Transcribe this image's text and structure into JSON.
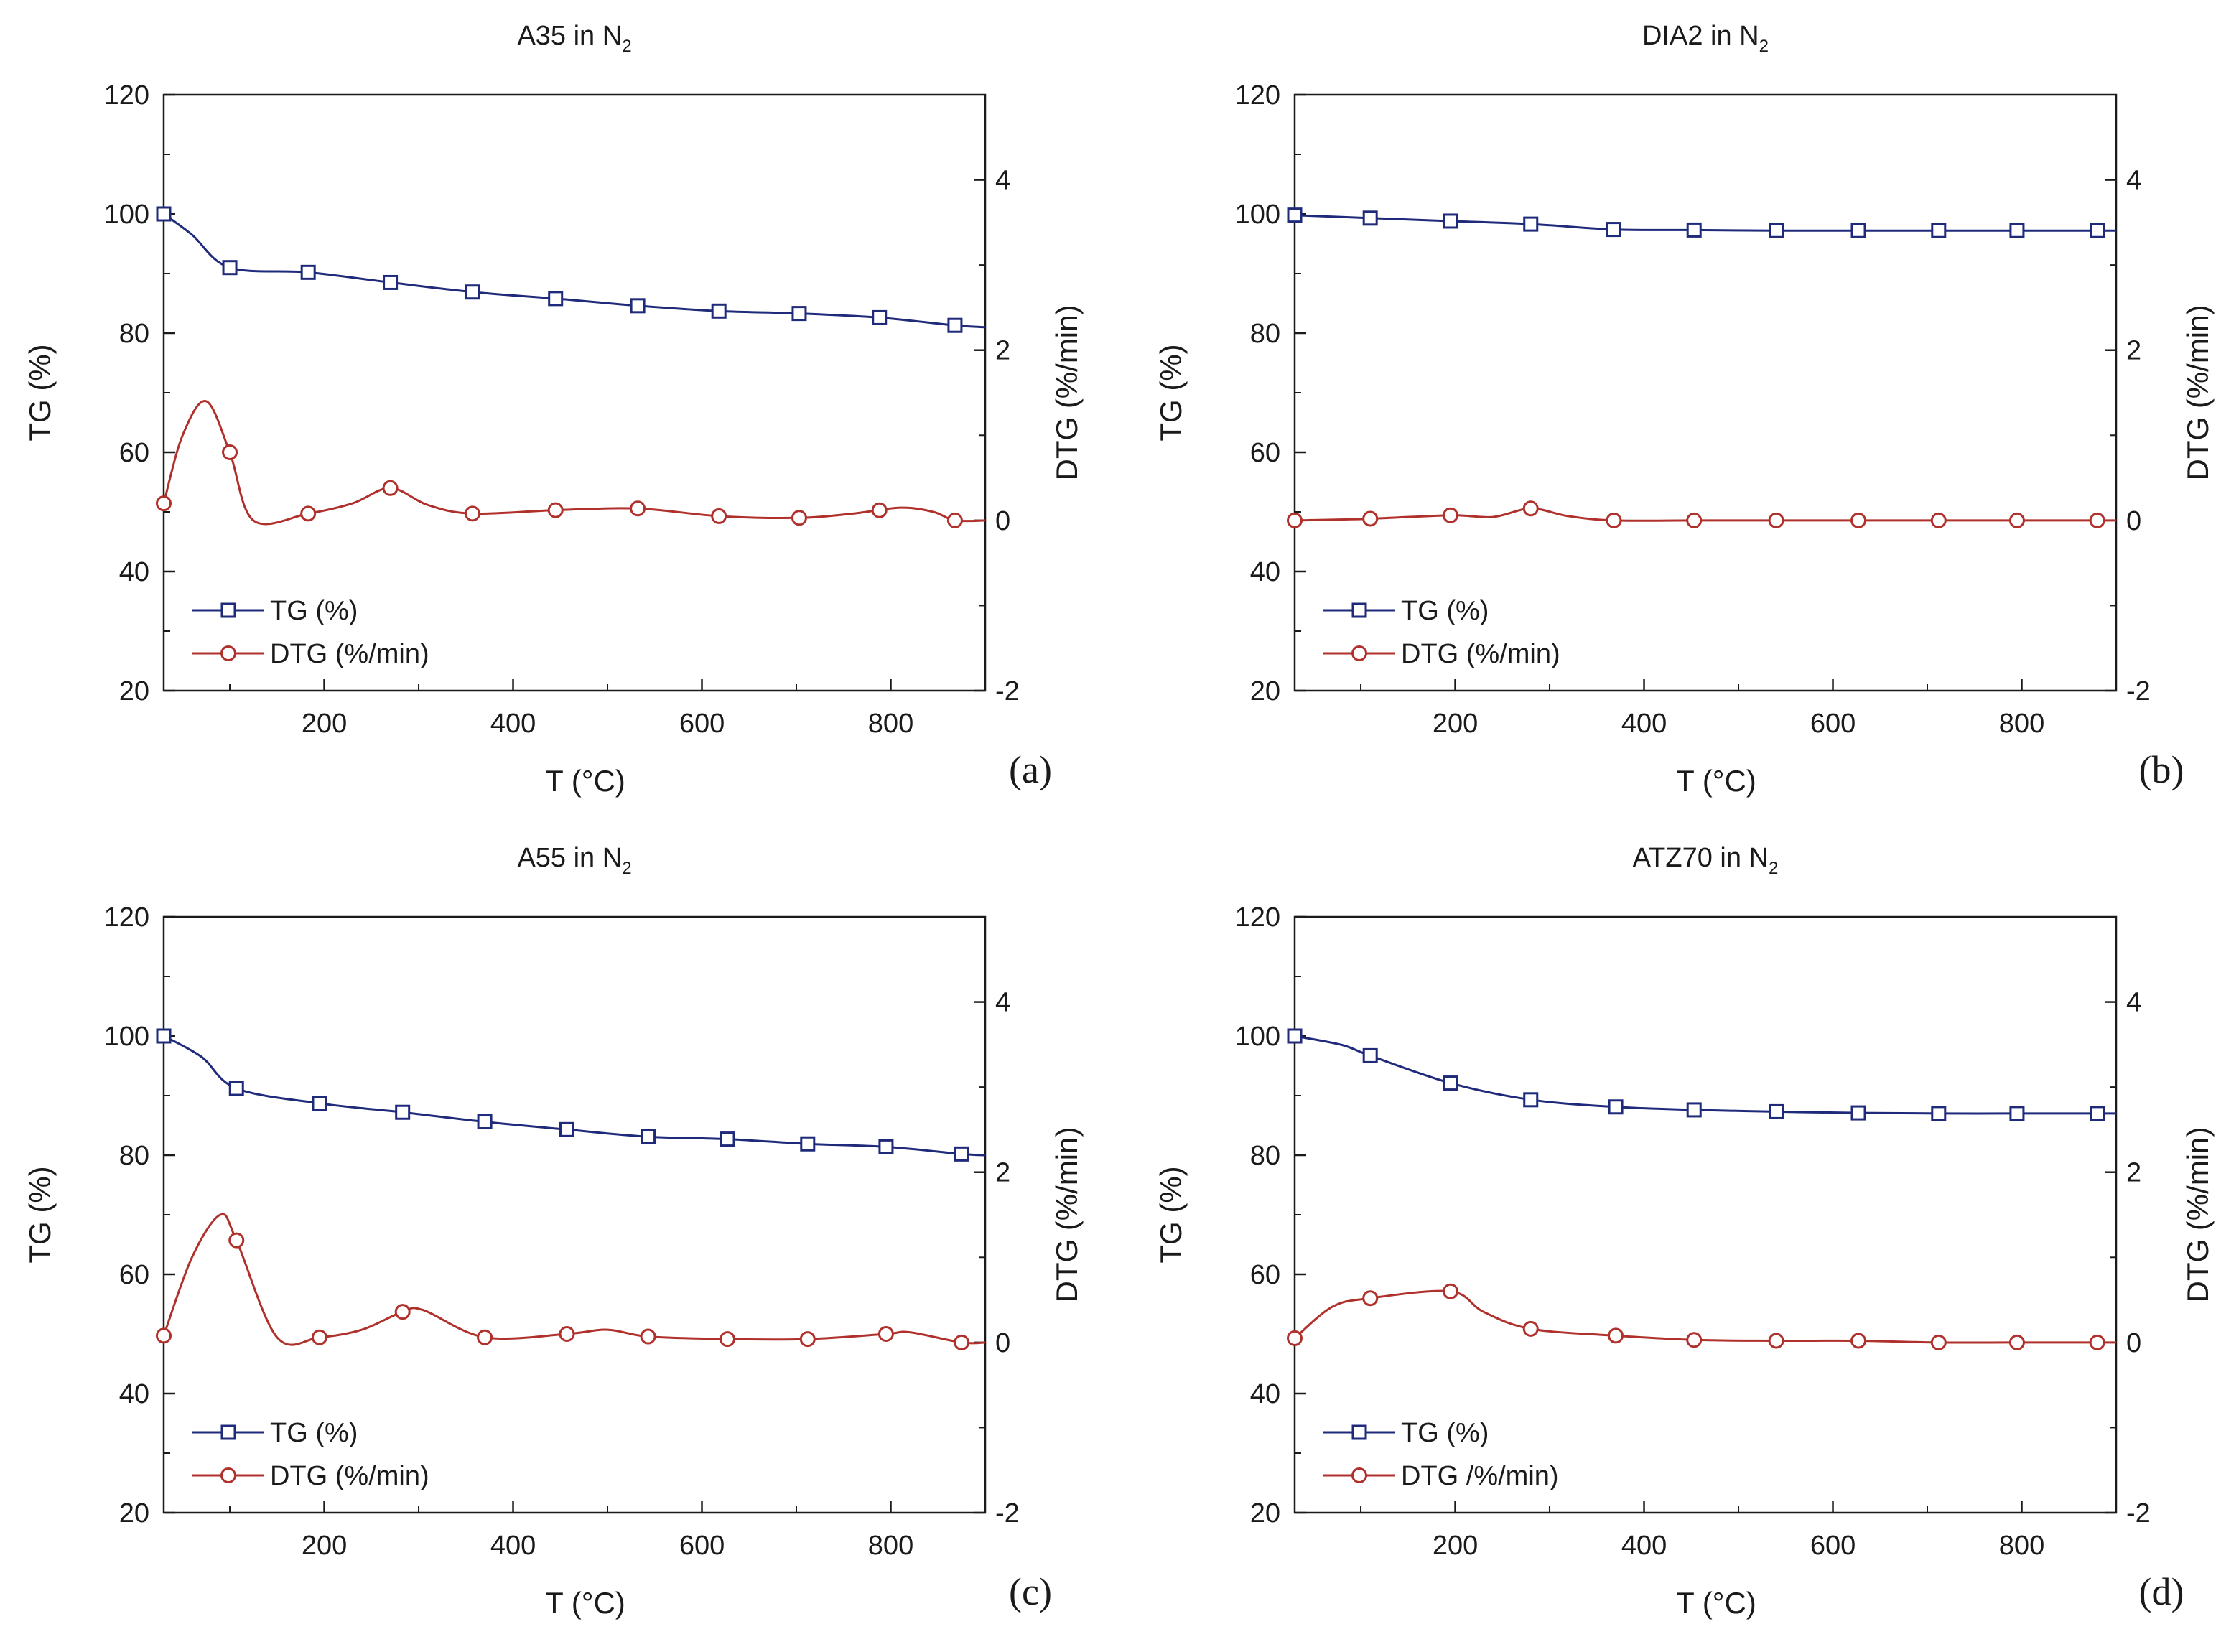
{
  "colors": {
    "tg": "#1f2a7a",
    "dtg": "#b0302c",
    "axis": "#1a1a1a",
    "background": "#ffffff"
  },
  "chart_data": [
    {
      "type": "line",
      "panel_label": "(a)",
      "title_main": "A35 in N",
      "title_sub": "2",
      "xlabel": "T (°C)",
      "ylabel_left": "TG (%)",
      "ylabel_right": "DTG (%/min)",
      "xlim": [
        30,
        900
      ],
      "ylim_left": [
        20,
        120
      ],
      "ylim_right": [
        -2,
        5
      ],
      "x_ticks": [
        "200",
        "400",
        "600",
        "800"
      ],
      "y_left_ticks": [
        "20",
        "40",
        "60",
        "80",
        "100",
        "120"
      ],
      "y_right_ticks": [
        "-2",
        "0",
        "2",
        "4"
      ],
      "legend": "bottom-left",
      "series": [
        {
          "name": "TG (%)",
          "axis": "left",
          "marker": "square",
          "x": [
            30,
            60,
            100,
            183,
            270,
            357,
            445,
            532,
            618,
            703,
            788,
            868,
            900
          ],
          "y": [
            100,
            96.5,
            91,
            90.2,
            88.5,
            86.9,
            85.8,
            84.6,
            83.7,
            83.3,
            82.6,
            81.3,
            81.0
          ],
          "markers_x": [
            30,
            100,
            183,
            270,
            357,
            445,
            532,
            618,
            703,
            788,
            868
          ]
        },
        {
          "name": "DTG (%/min)",
          "axis": "right",
          "marker": "circle",
          "x": [
            30,
            50,
            75,
            100,
            125,
            183,
            230,
            270,
            310,
            357,
            445,
            532,
            618,
            703,
            760,
            810,
            845,
            868,
            900
          ],
          "y": [
            0.2,
            1.0,
            1.4,
            0.8,
            0.0,
            0.08,
            0.2,
            0.38,
            0.18,
            0.08,
            0.12,
            0.14,
            0.05,
            0.03,
            0.08,
            0.15,
            0.1,
            0.0,
            0.0
          ],
          "markers_x": [
            30,
            100,
            183,
            270,
            357,
            445,
            532,
            618,
            703,
            788,
            868
          ]
        }
      ]
    },
    {
      "type": "line",
      "panel_label": "(b)",
      "title_main": "DIA2 in N",
      "title_sub": "2",
      "xlabel": "T (°C)",
      "ylabel_left": "TG (%)",
      "ylabel_right": "DTG (%/min)",
      "xlim": [
        30,
        900
      ],
      "ylim_left": [
        20,
        120
      ],
      "ylim_right": [
        -2,
        5
      ],
      "x_ticks": [
        "200",
        "400",
        "600",
        "800"
      ],
      "y_left_ticks": [
        "20",
        "40",
        "60",
        "80",
        "100",
        "120"
      ],
      "y_right_ticks": [
        "-2",
        "0",
        "2",
        "4"
      ],
      "legend": "bottom-left",
      "series": [
        {
          "name": "TG (%)",
          "axis": "left",
          "marker": "square",
          "x": [
            30,
            110,
            195,
            280,
            368,
            453,
            540,
            627,
            712,
            795,
            880,
            900
          ],
          "y": [
            99.8,
            99.3,
            98.8,
            98.3,
            97.4,
            97.3,
            97.2,
            97.2,
            97.2,
            97.2,
            97.2,
            97.2
          ],
          "markers_x": [
            30,
            110,
            195,
            280,
            368,
            453,
            540,
            627,
            712,
            795,
            880
          ]
        },
        {
          "name": "DTG (%/min)",
          "axis": "right",
          "marker": "circle",
          "x": [
            30,
            110,
            195,
            240,
            280,
            320,
            368,
            453,
            540,
            627,
            712,
            795,
            880,
            900
          ],
          "y": [
            0.0,
            0.02,
            0.06,
            0.04,
            0.14,
            0.05,
            0.0,
            0.0,
            0.0,
            0.0,
            0.0,
            0.0,
            0.0,
            0.0
          ],
          "markers_x": [
            30,
            110,
            195,
            280,
            368,
            453,
            540,
            627,
            712,
            795,
            880
          ]
        }
      ]
    },
    {
      "type": "line",
      "panel_label": "(c)",
      "title_main": "A55 in N",
      "title_sub": "2",
      "xlabel": "T (°C)",
      "ylabel_left": "TG (%)",
      "ylabel_right": "DTG (%/min)",
      "xlim": [
        30,
        900
      ],
      "ylim_left": [
        20,
        120
      ],
      "ylim_right": [
        -2,
        5
      ],
      "x_ticks": [
        "200",
        "400",
        "600",
        "800"
      ],
      "y_left_ticks": [
        "20",
        "40",
        "60",
        "80",
        "100",
        "120"
      ],
      "y_right_ticks": [
        "-2",
        "0",
        "2",
        "4"
      ],
      "legend": "bottom-left",
      "series": [
        {
          "name": "TG (%)",
          "axis": "left",
          "marker": "square",
          "x": [
            30,
            70,
            107,
            195,
            283,
            370,
            457,
            543,
            627,
            712,
            795,
            875,
            900
          ],
          "y": [
            100,
            96.5,
            91.2,
            88.7,
            87.2,
            85.6,
            84.3,
            83.1,
            82.7,
            81.9,
            81.4,
            80.2,
            80.0
          ],
          "markers_x": [
            30,
            107,
            195,
            283,
            370,
            457,
            543,
            627,
            712,
            795,
            875
          ]
        },
        {
          "name": "DTG (%/min)",
          "axis": "right",
          "marker": "circle",
          "x": [
            30,
            60,
            90,
            107,
            150,
            195,
            240,
            283,
            305,
            370,
            457,
            500,
            543,
            627,
            712,
            795,
            820,
            875,
            900
          ],
          "y": [
            0.08,
            1.0,
            1.5,
            1.2,
            0.06,
            0.06,
            0.15,
            0.36,
            0.38,
            0.06,
            0.1,
            0.15,
            0.07,
            0.04,
            0.04,
            0.1,
            0.12,
            0.0,
            0.0
          ],
          "markers_x": [
            30,
            107,
            195,
            283,
            370,
            457,
            543,
            627,
            712,
            795,
            875
          ]
        }
      ]
    },
    {
      "type": "line",
      "panel_label": "(d)",
      "title_main": "ATZ70 in N",
      "title_sub": "2",
      "xlabel": "T (°C)",
      "ylabel_left": "TG (%)",
      "ylabel_right": "DTG (%/min)",
      "xlim": [
        30,
        900
      ],
      "ylim_left": [
        20,
        120
      ],
      "ylim_right": [
        -2,
        5
      ],
      "x_ticks": [
        "200",
        "400",
        "600",
        "800"
      ],
      "y_left_ticks": [
        "20",
        "40",
        "60",
        "80",
        "100",
        "120"
      ],
      "y_right_ticks": [
        "-2",
        "0",
        "2",
        "4"
      ],
      "legend": "bottom-left",
      "series": [
        {
          "name": "TG (%)",
          "axis": "left",
          "marker": "square",
          "x": [
            30,
            80,
            110,
            195,
            280,
            370,
            453,
            540,
            627,
            712,
            795,
            880,
            900
          ],
          "y": [
            100,
            98.5,
            96.7,
            92.1,
            89.3,
            88.1,
            87.6,
            87.3,
            87.1,
            87.0,
            87.0,
            87.0,
            87.0
          ],
          "markers_x": [
            30,
            110,
            195,
            280,
            370,
            453,
            540,
            627,
            712,
            795,
            880
          ]
        },
        {
          "name": "DTG /%/min)",
          "axis": "right",
          "marker": "circle",
          "x": [
            30,
            70,
            110,
            195,
            230,
            280,
            370,
            453,
            540,
            627,
            712,
            795,
            880,
            900
          ],
          "y": [
            0.05,
            0.42,
            0.52,
            0.6,
            0.36,
            0.16,
            0.08,
            0.03,
            0.02,
            0.02,
            0.0,
            0.0,
            0.0,
            0.0
          ],
          "markers_x": [
            30,
            110,
            195,
            280,
            370,
            453,
            540,
            627,
            712,
            795,
            880
          ]
        }
      ]
    }
  ]
}
